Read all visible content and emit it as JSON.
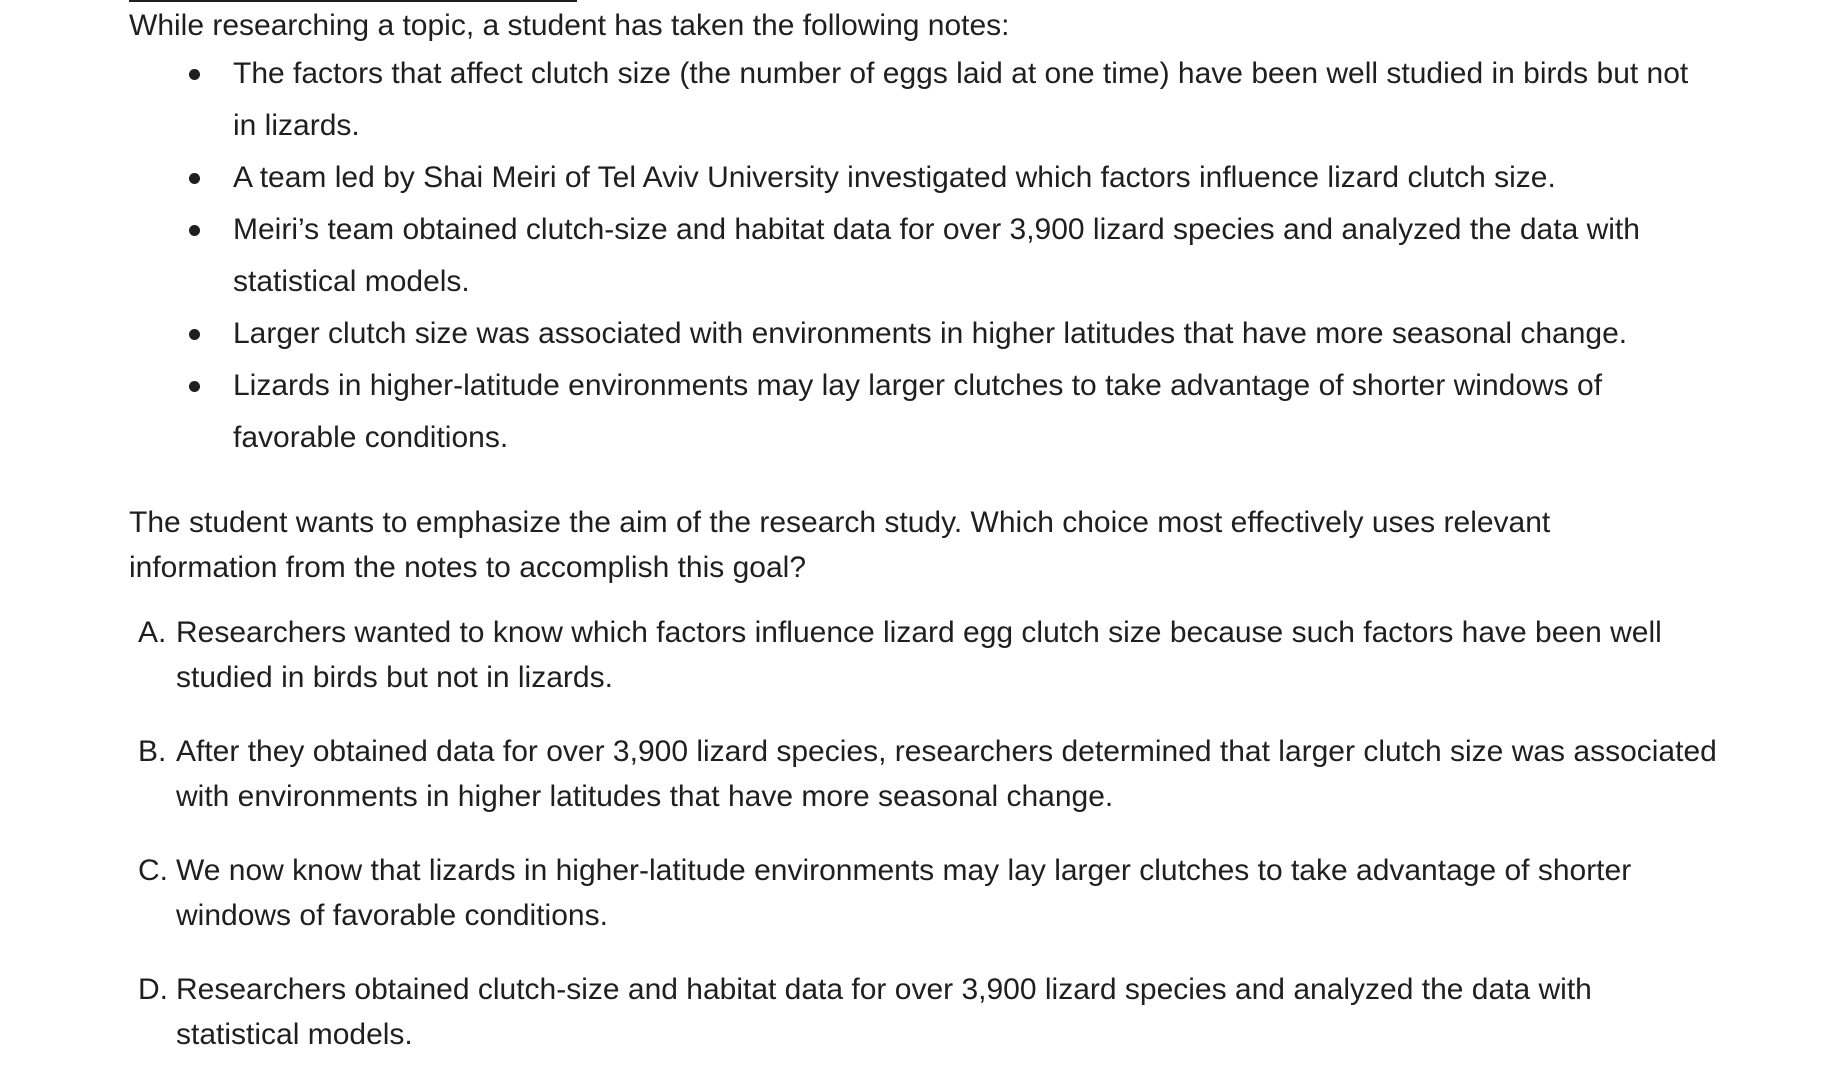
{
  "intro": "While researching a topic, a student has taken the following notes:",
  "notes": [
    "The factors that affect clutch size (the number of eggs laid at one time) have been well studied in birds but not in lizards.",
    "A team led by Shai Meiri of Tel Aviv University investigated which factors influence lizard clutch size.",
    "Meiri’s team obtained clutch-size and habitat data for over 3,900 lizard species and analyzed the data with statistical models.",
    "Larger clutch size was associated with environments in higher latitudes that have more seasonal change.",
    "Lizards in higher-latitude environments may lay larger clutches to take advantage of shorter windows of favorable conditions."
  ],
  "question": "The student wants to emphasize the aim of the research study. Which choice most effectively uses relevant information from the notes to accomplish this goal?",
  "choices": [
    {
      "letter": "A.",
      "text": "Researchers wanted to know which factors influence lizard egg clutch size because such factors have been well studied in birds but not in lizards."
    },
    {
      "letter": "B.",
      "text": "After they obtained data for over 3,900 lizard species, researchers determined that larger clutch size was associated with environments in higher latitudes that have more seasonal change."
    },
    {
      "letter": "C.",
      "text": "We now know that lizards in higher-latitude environments may lay larger clutches to take advantage of shorter windows of favorable conditions."
    },
    {
      "letter": "D.",
      "text": "Researchers obtained clutch-size and habitat data for over 3,900 lizard species and analyzed the data with statistical models."
    }
  ]
}
